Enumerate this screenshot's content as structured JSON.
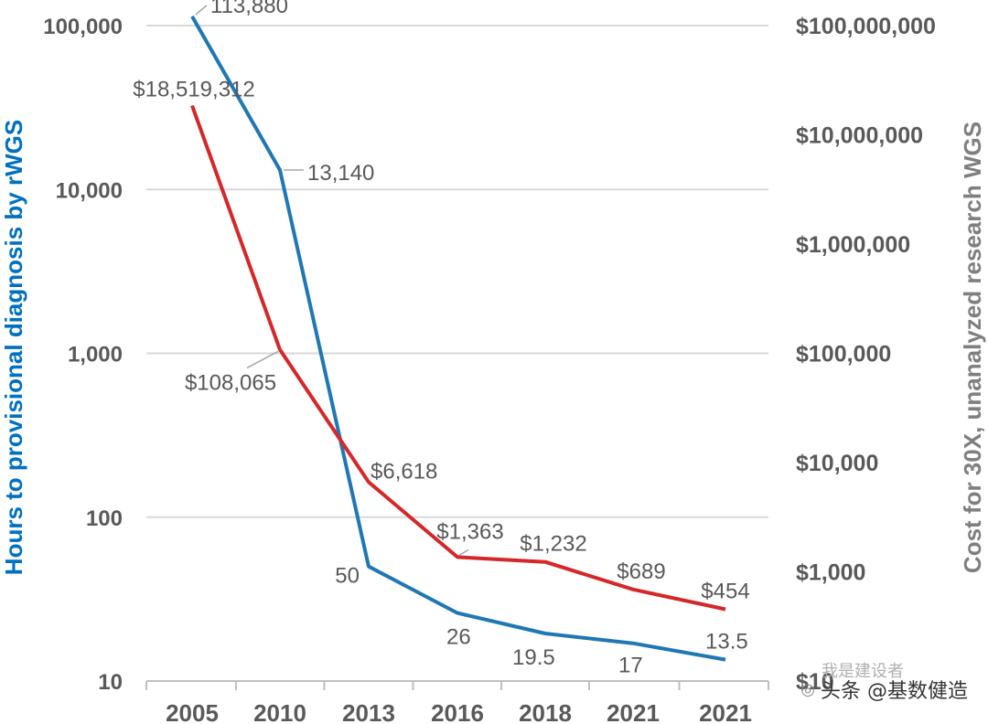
{
  "chart_data": {
    "type": "line",
    "categories": [
      "2005",
      "2010",
      "2013",
      "2016",
      "2018",
      "2021",
      "2021"
    ],
    "series": [
      {
        "name": "Hours to provisional diagnosis by rWGS",
        "axis": "left",
        "color": "#1f77b4",
        "values": [
          113880,
          13140,
          50,
          26,
          19.5,
          17,
          13.5
        ],
        "labels": [
          "113,880",
          "13,140",
          "50",
          "26",
          "19.5",
          "17",
          "13.5"
        ]
      },
      {
        "name": "Cost for 30X, unanalyzed research WGS",
        "axis": "right",
        "color": "#d62728",
        "values": [
          18519312,
          108065,
          6618,
          1363,
          1232,
          689,
          454
        ],
        "labels": [
          "$18,519,312",
          "$108,065",
          "$6,618",
          "$1,363",
          "$1,232",
          "$689",
          "$454"
        ]
      }
    ],
    "left_axis": {
      "label": "Hours to provisional diagnosis by rWGS",
      "scale": "log",
      "ylim": [
        10,
        100000
      ],
      "ticks": [
        10,
        100,
        1000,
        10000,
        100000
      ],
      "tick_labels": [
        "10",
        "100",
        "1,000",
        "10,000",
        "100,000"
      ]
    },
    "right_axis": {
      "label": "Cost for 30X, unanalyzed research WGS",
      "scale": "log",
      "ylim": [
        100,
        100000000
      ],
      "ticks": [
        1000,
        10000,
        100000,
        1000000,
        10000000,
        100000000
      ],
      "tick_labels": [
        "$1,000",
        "$10,000",
        "$100,000",
        "$1,000,000",
        "$10,000,000",
        "$100,000,000"
      ],
      "partial_bottom_label": "$10"
    },
    "grid": true
  },
  "watermark": {
    "text": "头条 @基数健造",
    "faint_text": "我是建设者"
  }
}
